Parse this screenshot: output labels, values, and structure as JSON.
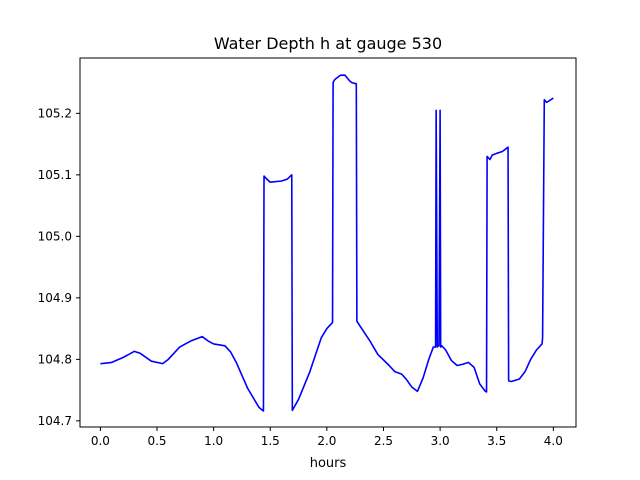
{
  "chart_data": {
    "type": "line",
    "title": "Water Depth h at gauge 530",
    "xlabel": "hours",
    "ylabel": "",
    "xlim": [
      -0.18,
      4.2
    ],
    "ylim": [
      104.69,
      105.29
    ],
    "grid": false,
    "xticks": [
      {
        "value": 0.0,
        "label": "0.0"
      },
      {
        "value": 0.5,
        "label": "0.5"
      },
      {
        "value": 1.0,
        "label": "1.0"
      },
      {
        "value": 1.5,
        "label": "1.5"
      },
      {
        "value": 2.0,
        "label": "2.0"
      },
      {
        "value": 2.5,
        "label": "2.5"
      },
      {
        "value": 3.0,
        "label": "3.0"
      },
      {
        "value": 3.5,
        "label": "3.5"
      },
      {
        "value": 4.0,
        "label": "4.0"
      }
    ],
    "yticks": [
      {
        "value": 104.7,
        "label": "104.7"
      },
      {
        "value": 104.8,
        "label": "104.8"
      },
      {
        "value": 104.9,
        "label": "104.9"
      },
      {
        "value": 105.0,
        "label": "105.0"
      },
      {
        "value": 105.1,
        "label": "105.1"
      },
      {
        "value": 105.2,
        "label": "105.2"
      }
    ],
    "series": [
      {
        "color": "#0000ff",
        "x": [
          0.0,
          0.1,
          0.2,
          0.3,
          0.35,
          0.45,
          0.55,
          0.6,
          0.7,
          0.75,
          0.8,
          0.9,
          0.95,
          1.0,
          1.1,
          1.15,
          1.2,
          1.3,
          1.4,
          1.44,
          1.445,
          1.47,
          1.5,
          1.6,
          1.65,
          1.69,
          1.695,
          1.75,
          1.85,
          1.95,
          2.0,
          2.05,
          2.055,
          2.07,
          2.12,
          2.16,
          2.2,
          2.22,
          2.26,
          2.265,
          2.3,
          2.38,
          2.45,
          2.55,
          2.6,
          2.66,
          2.7,
          2.75,
          2.8,
          2.85,
          2.9,
          2.94,
          2.96,
          2.965,
          2.975,
          2.98,
          2.99,
          3.0,
          3.005,
          3.015,
          3.05,
          3.1,
          3.15,
          3.2,
          3.25,
          3.3,
          3.35,
          3.4,
          3.41,
          3.415,
          3.44,
          3.46,
          3.5,
          3.55,
          3.6,
          3.605,
          3.63,
          3.7,
          3.75,
          3.8,
          3.85,
          3.9,
          3.905,
          3.92,
          3.94,
          3.96,
          4.0
        ],
        "y": [
          104.793,
          104.795,
          104.803,
          104.813,
          104.81,
          104.797,
          104.793,
          104.8,
          104.82,
          104.825,
          104.83,
          104.837,
          104.83,
          104.825,
          104.822,
          104.812,
          104.795,
          104.753,
          104.722,
          104.716,
          105.098,
          105.093,
          105.088,
          105.09,
          105.093,
          105.1,
          104.717,
          104.735,
          104.78,
          104.835,
          104.85,
          104.86,
          105.25,
          105.255,
          105.262,
          105.262,
          105.253,
          105.25,
          105.248,
          104.862,
          104.852,
          104.83,
          104.808,
          104.79,
          104.78,
          104.776,
          104.768,
          104.755,
          104.748,
          104.77,
          104.8,
          104.82,
          104.82,
          105.205,
          104.82,
          104.822,
          104.822,
          105.205,
          104.82,
          104.822,
          104.815,
          104.798,
          104.79,
          104.792,
          104.795,
          104.787,
          104.76,
          104.748,
          104.747,
          105.13,
          105.125,
          105.132,
          105.135,
          105.138,
          105.145,
          104.765,
          104.764,
          104.768,
          104.78,
          104.8,
          104.815,
          104.825,
          104.835,
          105.222,
          105.218,
          105.22,
          105.225
        ]
      }
    ]
  }
}
